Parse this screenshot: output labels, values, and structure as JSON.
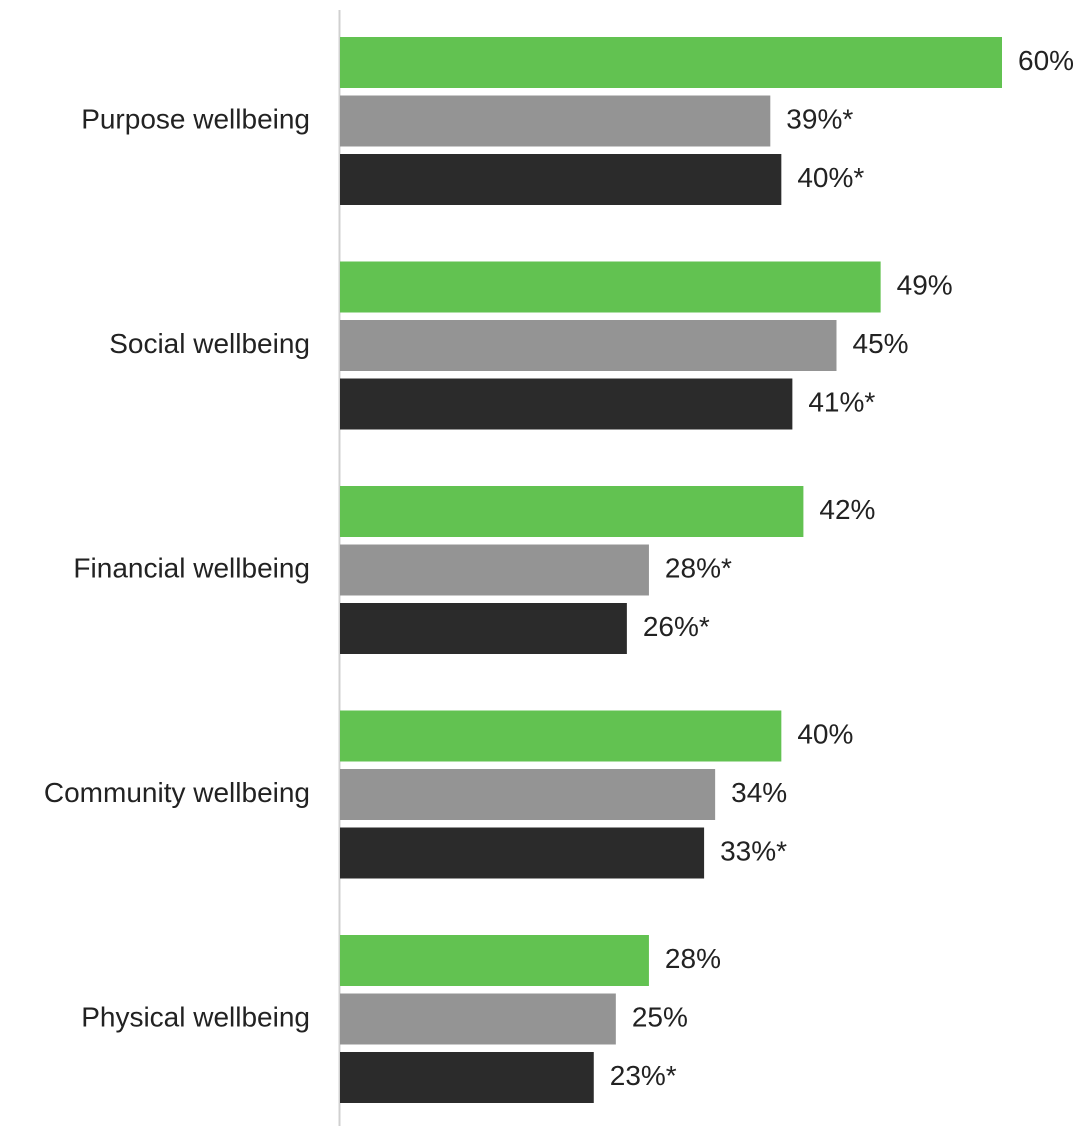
{
  "chart_data": {
    "type": "bar",
    "orientation": "horizontal",
    "categories": [
      "Purpose wellbeing",
      "Social wellbeing",
      "Financial wellbeing",
      "Community wellbeing",
      "Physical wellbeing"
    ],
    "series": [
      {
        "color": "#62C251",
        "values": [
          60,
          49,
          42,
          40,
          28
        ],
        "labels": [
          "60%",
          "49%",
          "42%",
          "40%",
          "28%"
        ]
      },
      {
        "color": "#949494",
        "values": [
          39,
          45,
          28,
          34,
          25
        ],
        "labels": [
          "39%*",
          "45%",
          "28%*",
          "34%",
          "25%"
        ]
      },
      {
        "color": "#2B2B2B",
        "values": [
          40,
          41,
          26,
          33,
          23
        ],
        "labels": [
          "40%*",
          "41%*",
          "26%*",
          "33%*",
          "23%*"
        ]
      }
    ],
    "xlim": [
      0,
      60
    ],
    "grid": false,
    "legend": "none",
    "title": "",
    "xlabel": "",
    "ylabel": ""
  }
}
